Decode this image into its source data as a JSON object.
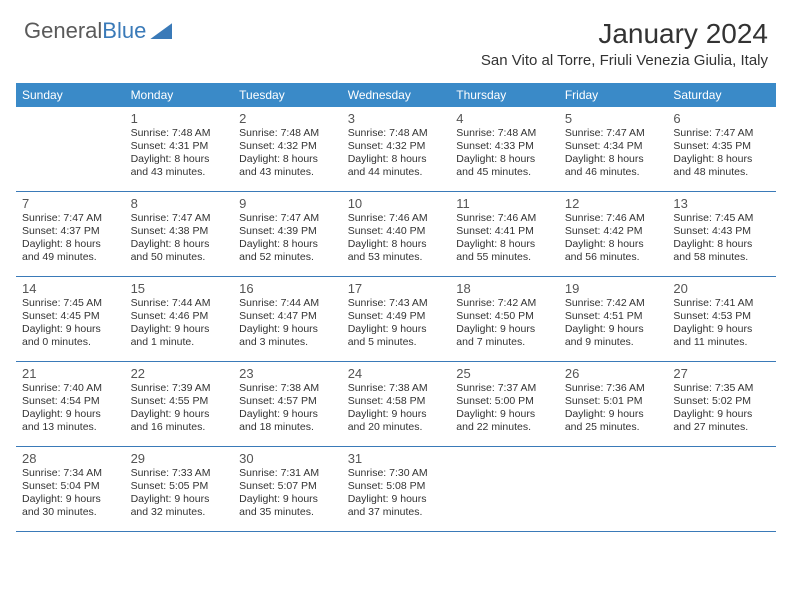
{
  "logo": {
    "text_part1": "General",
    "text_part2": "Blue"
  },
  "title": "January 2024",
  "location": "San Vito al Torre, Friuli Venezia Giulia, Italy",
  "colors": {
    "header_bg": "#3a8ac8",
    "header_fg": "#ffffff",
    "row_border": "#3a7ab8",
    "text": "#333333",
    "daynum": "#555555",
    "logo_gray": "#5a5a5a",
    "logo_blue": "#3a7ab8",
    "page_bg": "#ffffff"
  },
  "fonts": {
    "title_size": 28,
    "location_size": 15,
    "weekday_size": 12,
    "daynum_size": 13,
    "body_size": 10.5
  },
  "weekdays": [
    "Sunday",
    "Monday",
    "Tuesday",
    "Wednesday",
    "Thursday",
    "Friday",
    "Saturday"
  ],
  "weeks": [
    [
      null,
      {
        "day": "1",
        "sunrise": "Sunrise: 7:48 AM",
        "sunset": "Sunset: 4:31 PM",
        "daylight1": "Daylight: 8 hours",
        "daylight2": "and 43 minutes."
      },
      {
        "day": "2",
        "sunrise": "Sunrise: 7:48 AM",
        "sunset": "Sunset: 4:32 PM",
        "daylight1": "Daylight: 8 hours",
        "daylight2": "and 43 minutes."
      },
      {
        "day": "3",
        "sunrise": "Sunrise: 7:48 AM",
        "sunset": "Sunset: 4:32 PM",
        "daylight1": "Daylight: 8 hours",
        "daylight2": "and 44 minutes."
      },
      {
        "day": "4",
        "sunrise": "Sunrise: 7:48 AM",
        "sunset": "Sunset: 4:33 PM",
        "daylight1": "Daylight: 8 hours",
        "daylight2": "and 45 minutes."
      },
      {
        "day": "5",
        "sunrise": "Sunrise: 7:47 AM",
        "sunset": "Sunset: 4:34 PM",
        "daylight1": "Daylight: 8 hours",
        "daylight2": "and 46 minutes."
      },
      {
        "day": "6",
        "sunrise": "Sunrise: 7:47 AM",
        "sunset": "Sunset: 4:35 PM",
        "daylight1": "Daylight: 8 hours",
        "daylight2": "and 48 minutes."
      }
    ],
    [
      {
        "day": "7",
        "sunrise": "Sunrise: 7:47 AM",
        "sunset": "Sunset: 4:37 PM",
        "daylight1": "Daylight: 8 hours",
        "daylight2": "and 49 minutes."
      },
      {
        "day": "8",
        "sunrise": "Sunrise: 7:47 AM",
        "sunset": "Sunset: 4:38 PM",
        "daylight1": "Daylight: 8 hours",
        "daylight2": "and 50 minutes."
      },
      {
        "day": "9",
        "sunrise": "Sunrise: 7:47 AM",
        "sunset": "Sunset: 4:39 PM",
        "daylight1": "Daylight: 8 hours",
        "daylight2": "and 52 minutes."
      },
      {
        "day": "10",
        "sunrise": "Sunrise: 7:46 AM",
        "sunset": "Sunset: 4:40 PM",
        "daylight1": "Daylight: 8 hours",
        "daylight2": "and 53 minutes."
      },
      {
        "day": "11",
        "sunrise": "Sunrise: 7:46 AM",
        "sunset": "Sunset: 4:41 PM",
        "daylight1": "Daylight: 8 hours",
        "daylight2": "and 55 minutes."
      },
      {
        "day": "12",
        "sunrise": "Sunrise: 7:46 AM",
        "sunset": "Sunset: 4:42 PM",
        "daylight1": "Daylight: 8 hours",
        "daylight2": "and 56 minutes."
      },
      {
        "day": "13",
        "sunrise": "Sunrise: 7:45 AM",
        "sunset": "Sunset: 4:43 PM",
        "daylight1": "Daylight: 8 hours",
        "daylight2": "and 58 minutes."
      }
    ],
    [
      {
        "day": "14",
        "sunrise": "Sunrise: 7:45 AM",
        "sunset": "Sunset: 4:45 PM",
        "daylight1": "Daylight: 9 hours",
        "daylight2": "and 0 minutes."
      },
      {
        "day": "15",
        "sunrise": "Sunrise: 7:44 AM",
        "sunset": "Sunset: 4:46 PM",
        "daylight1": "Daylight: 9 hours",
        "daylight2": "and 1 minute."
      },
      {
        "day": "16",
        "sunrise": "Sunrise: 7:44 AM",
        "sunset": "Sunset: 4:47 PM",
        "daylight1": "Daylight: 9 hours",
        "daylight2": "and 3 minutes."
      },
      {
        "day": "17",
        "sunrise": "Sunrise: 7:43 AM",
        "sunset": "Sunset: 4:49 PM",
        "daylight1": "Daylight: 9 hours",
        "daylight2": "and 5 minutes."
      },
      {
        "day": "18",
        "sunrise": "Sunrise: 7:42 AM",
        "sunset": "Sunset: 4:50 PM",
        "daylight1": "Daylight: 9 hours",
        "daylight2": "and 7 minutes."
      },
      {
        "day": "19",
        "sunrise": "Sunrise: 7:42 AM",
        "sunset": "Sunset: 4:51 PM",
        "daylight1": "Daylight: 9 hours",
        "daylight2": "and 9 minutes."
      },
      {
        "day": "20",
        "sunrise": "Sunrise: 7:41 AM",
        "sunset": "Sunset: 4:53 PM",
        "daylight1": "Daylight: 9 hours",
        "daylight2": "and 11 minutes."
      }
    ],
    [
      {
        "day": "21",
        "sunrise": "Sunrise: 7:40 AM",
        "sunset": "Sunset: 4:54 PM",
        "daylight1": "Daylight: 9 hours",
        "daylight2": "and 13 minutes."
      },
      {
        "day": "22",
        "sunrise": "Sunrise: 7:39 AM",
        "sunset": "Sunset: 4:55 PM",
        "daylight1": "Daylight: 9 hours",
        "daylight2": "and 16 minutes."
      },
      {
        "day": "23",
        "sunrise": "Sunrise: 7:38 AM",
        "sunset": "Sunset: 4:57 PM",
        "daylight1": "Daylight: 9 hours",
        "daylight2": "and 18 minutes."
      },
      {
        "day": "24",
        "sunrise": "Sunrise: 7:38 AM",
        "sunset": "Sunset: 4:58 PM",
        "daylight1": "Daylight: 9 hours",
        "daylight2": "and 20 minutes."
      },
      {
        "day": "25",
        "sunrise": "Sunrise: 7:37 AM",
        "sunset": "Sunset: 5:00 PM",
        "daylight1": "Daylight: 9 hours",
        "daylight2": "and 22 minutes."
      },
      {
        "day": "26",
        "sunrise": "Sunrise: 7:36 AM",
        "sunset": "Sunset: 5:01 PM",
        "daylight1": "Daylight: 9 hours",
        "daylight2": "and 25 minutes."
      },
      {
        "day": "27",
        "sunrise": "Sunrise: 7:35 AM",
        "sunset": "Sunset: 5:02 PM",
        "daylight1": "Daylight: 9 hours",
        "daylight2": "and 27 minutes."
      }
    ],
    [
      {
        "day": "28",
        "sunrise": "Sunrise: 7:34 AM",
        "sunset": "Sunset: 5:04 PM",
        "daylight1": "Daylight: 9 hours",
        "daylight2": "and 30 minutes."
      },
      {
        "day": "29",
        "sunrise": "Sunrise: 7:33 AM",
        "sunset": "Sunset: 5:05 PM",
        "daylight1": "Daylight: 9 hours",
        "daylight2": "and 32 minutes."
      },
      {
        "day": "30",
        "sunrise": "Sunrise: 7:31 AM",
        "sunset": "Sunset: 5:07 PM",
        "daylight1": "Daylight: 9 hours",
        "daylight2": "and 35 minutes."
      },
      {
        "day": "31",
        "sunrise": "Sunrise: 7:30 AM",
        "sunset": "Sunset: 5:08 PM",
        "daylight1": "Daylight: 9 hours",
        "daylight2": "and 37 minutes."
      },
      null,
      null,
      null
    ]
  ]
}
